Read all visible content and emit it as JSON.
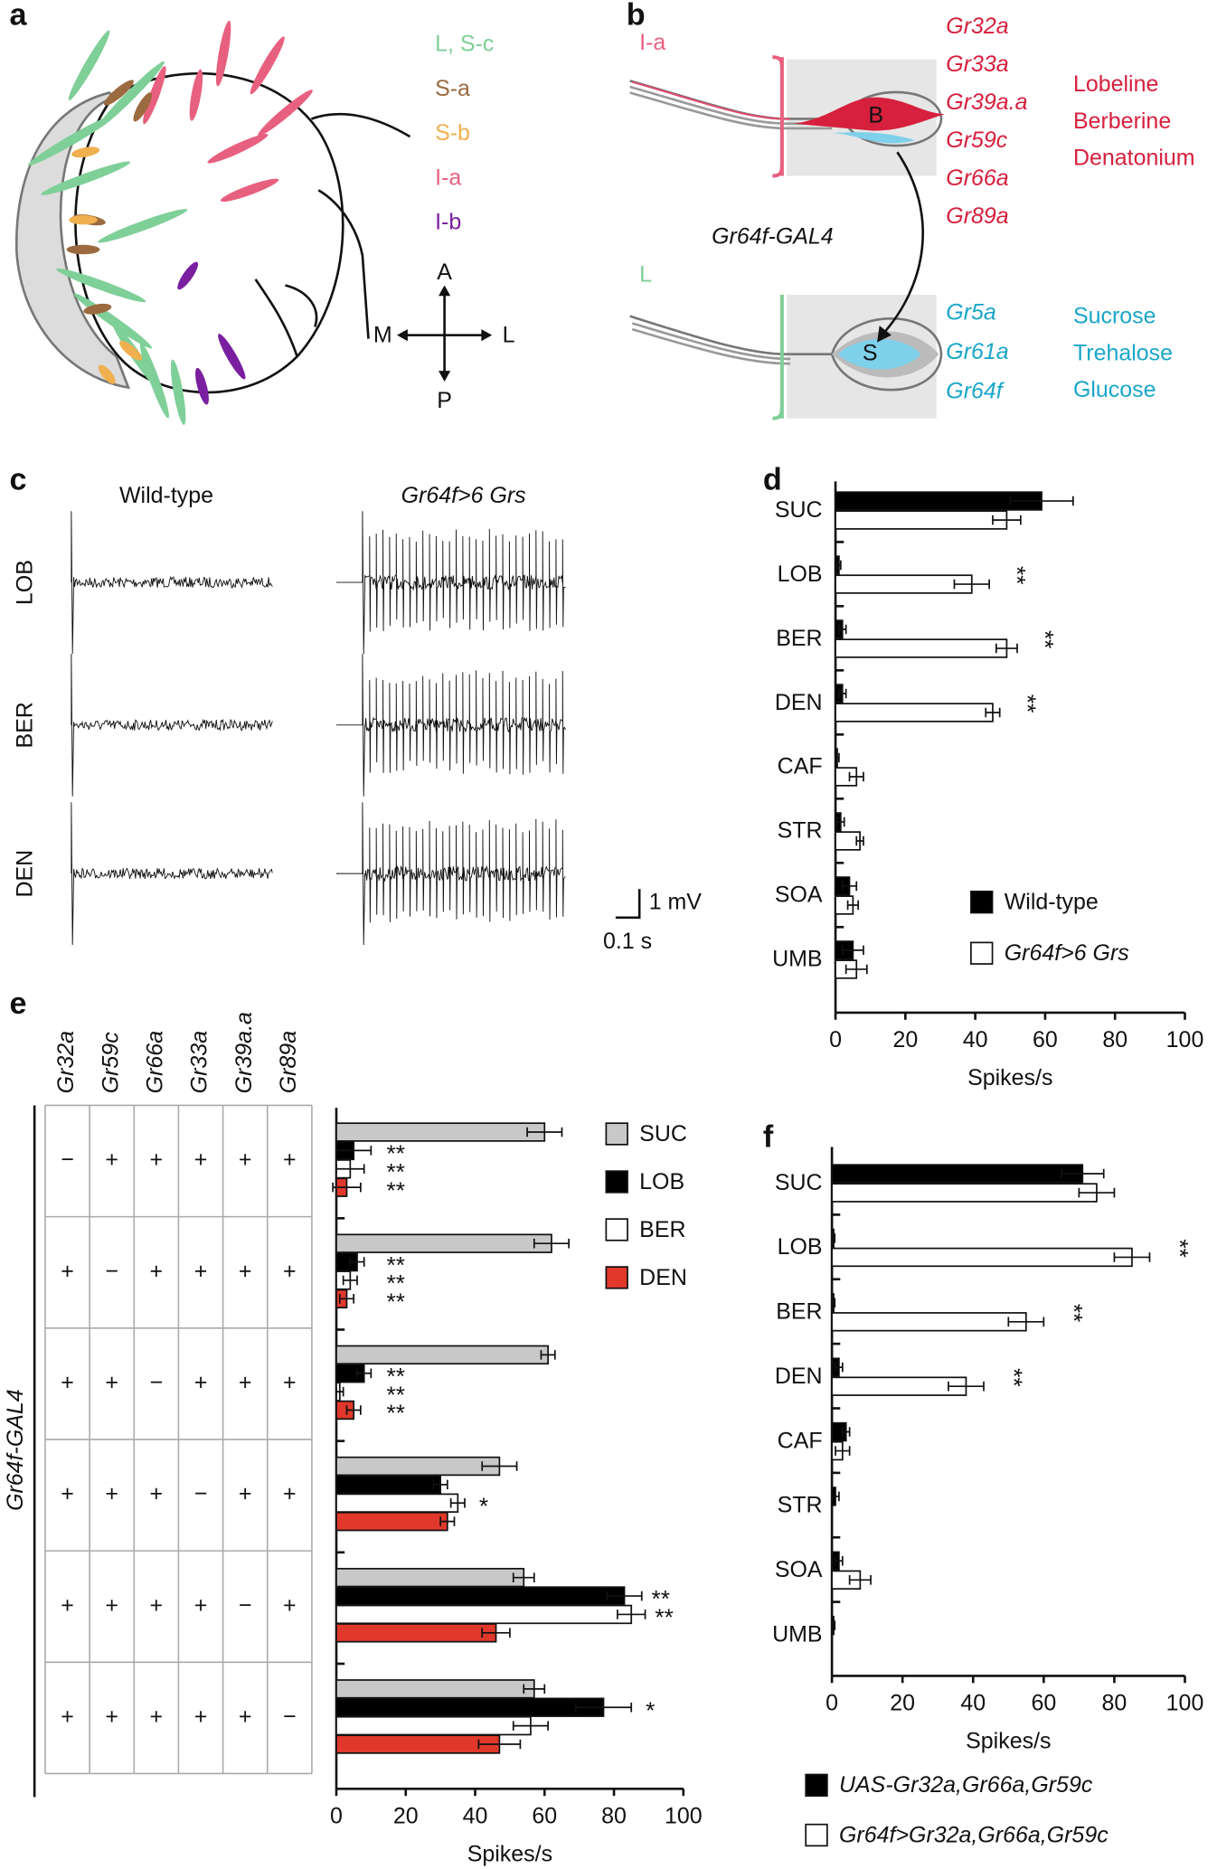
{
  "panel_labels": [
    "a",
    "b",
    "c",
    "d",
    "e",
    "f"
  ],
  "panel_a": {
    "legend": [
      {
        "label": "L, S-c",
        "color": "#7fcf98"
      },
      {
        "label": "S-a",
        "color": "#9b6a3f"
      },
      {
        "label": "S-b",
        "color": "#f0b050"
      },
      {
        "label": "I-a",
        "color": "#e8607f"
      },
      {
        "label": "I-b",
        "color": "#7a1fa0"
      }
    ],
    "compass": {
      "up": "A",
      "left": "M",
      "right": "L",
      "down": "P"
    }
  },
  "panel_b": {
    "top": {
      "sensillum": "I-a",
      "cell": "B",
      "receptors": [
        "Gr32a",
        "Gr33a",
        "Gr39a.a",
        "Gr59c",
        "Gr66a",
        "Gr89a"
      ],
      "ligands": [
        "Lobeline",
        "Berberine",
        "Denatonium"
      ]
    },
    "driver": "Gr64f-GAL4",
    "bottom": {
      "sensillum": "L",
      "cell": "S",
      "receptors": [
        "Gr5a",
        "Gr61a",
        "Gr64f"
      ],
      "ligands": [
        "Sucrose",
        "Trehalose",
        "Glucose"
      ]
    }
  },
  "panel_c": {
    "columns": [
      "Wild-type",
      "Gr64f>6 Grs"
    ],
    "rows": [
      "LOB",
      "BER",
      "DEN"
    ],
    "scale_y": "1 mV",
    "scale_x": "0.1 s"
  },
  "chart_data": [
    {
      "type": "bar",
      "orientation": "horizontal",
      "xlabel": "Spikes/s",
      "categories": [
        "SUC",
        "LOB",
        "BER",
        "DEN",
        "CAF",
        "STR",
        "SOA",
        "UMB"
      ],
      "series": [
        {
          "name": "Wild-type",
          "color": "#000000",
          "values": [
            59,
            1,
            2,
            2,
            0.5,
            1.5,
            4,
            5
          ],
          "errors": [
            9,
            0.5,
            1,
            1,
            0.5,
            1,
            2,
            3
          ],
          "stars": [
            null,
            null,
            null,
            null,
            null,
            null,
            null,
            null
          ]
        },
        {
          "name": "Gr64f>6 Grs",
          "color": "#ffffff",
          "values": [
            49,
            39,
            49,
            45,
            6,
            7,
            5,
            6
          ],
          "errors": [
            4,
            5,
            3,
            2,
            2,
            1,
            1.5,
            3
          ],
          "stars": [
            null,
            "**",
            "**",
            "**",
            null,
            null,
            null,
            null
          ]
        }
      ],
      "xlim": [
        0,
        100
      ],
      "xticks": [
        0,
        20,
        40,
        60,
        80,
        100
      ]
    },
    {
      "type": "bar",
      "orientation": "horizontal",
      "xlabel": "Spikes/s",
      "table": {
        "row_label": "Gr64f-GAL4",
        "columns": [
          "Gr32a",
          "Gr59c",
          "Gr66a",
          "Gr33a",
          "Gr39a.a",
          "Gr89a"
        ],
        "rows": [
          [
            "−",
            "+",
            "+",
            "+",
            "+",
            "+"
          ],
          [
            "+",
            "−",
            "+",
            "+",
            "+",
            "+"
          ],
          [
            "+",
            "+",
            "−",
            "+",
            "+",
            "+"
          ],
          [
            "+",
            "+",
            "+",
            "−",
            "+",
            "+"
          ],
          [
            "+",
            "+",
            "+",
            "+",
            "−",
            "+"
          ],
          [
            "+",
            "+",
            "+",
            "+",
            "+",
            "−"
          ]
        ]
      },
      "series": [
        {
          "name": "SUC",
          "color": "#c8c8c8",
          "values": [
            60,
            62,
            61,
            47,
            54,
            57
          ],
          "errors": [
            5,
            5,
            2,
            5,
            3,
            3
          ],
          "stars": [
            null,
            null,
            null,
            null,
            null,
            null
          ]
        },
        {
          "name": "LOB",
          "color": "#000000",
          "values": [
            5,
            6,
            8,
            30,
            83,
            77
          ],
          "errors": [
            5,
            2,
            2,
            2,
            5,
            8
          ],
          "stars": [
            "**",
            "**",
            "**",
            null,
            "**",
            "*"
          ]
        },
        {
          "name": "BER",
          "color": "#ffffff",
          "values": [
            4,
            4,
            1,
            35,
            85,
            56
          ],
          "errors": [
            4,
            2,
            1,
            2,
            4,
            5
          ],
          "stars": [
            "**",
            "**",
            "**",
            "*",
            "**",
            null
          ]
        },
        {
          "name": "DEN",
          "color": "#e0392b",
          "values": [
            3,
            3,
            5,
            32,
            46,
            47
          ],
          "errors": [
            4,
            2,
            2,
            2,
            4,
            6
          ],
          "stars": [
            "**",
            "**",
            "**",
            null,
            null,
            null
          ]
        }
      ],
      "xlim": [
        0,
        100
      ],
      "xticks": [
        0,
        20,
        40,
        60,
        80,
        100
      ]
    },
    {
      "type": "bar",
      "orientation": "horizontal",
      "xlabel": "Spikes/s",
      "categories": [
        "SUC",
        "LOB",
        "BER",
        "DEN",
        "CAF",
        "STR",
        "SOA",
        "UMB"
      ],
      "series": [
        {
          "name": "UAS-Gr32a,Gr66a,Gr59c",
          "color": "#000000",
          "values": [
            71,
            0.5,
            0.5,
            2,
            4,
            1,
            2,
            0.5
          ],
          "errors": [
            6,
            0.3,
            0.3,
            1,
            1,
            1,
            1,
            0.3
          ],
          "stars": [
            null,
            null,
            null,
            null,
            null,
            null,
            null,
            null
          ]
        },
        {
          "name": "Gr64f>Gr32a,Gr66a,Gr59c",
          "color": "#ffffff",
          "values": [
            75,
            85,
            55,
            38,
            3,
            0,
            8,
            0
          ],
          "errors": [
            5,
            5,
            5,
            5,
            2,
            0,
            3,
            0
          ],
          "stars": [
            null,
            "**",
            "**",
            "**",
            null,
            null,
            null,
            null
          ]
        }
      ],
      "xlim": [
        0,
        100
      ],
      "xticks": [
        0,
        20,
        40,
        60,
        80,
        100
      ]
    }
  ]
}
